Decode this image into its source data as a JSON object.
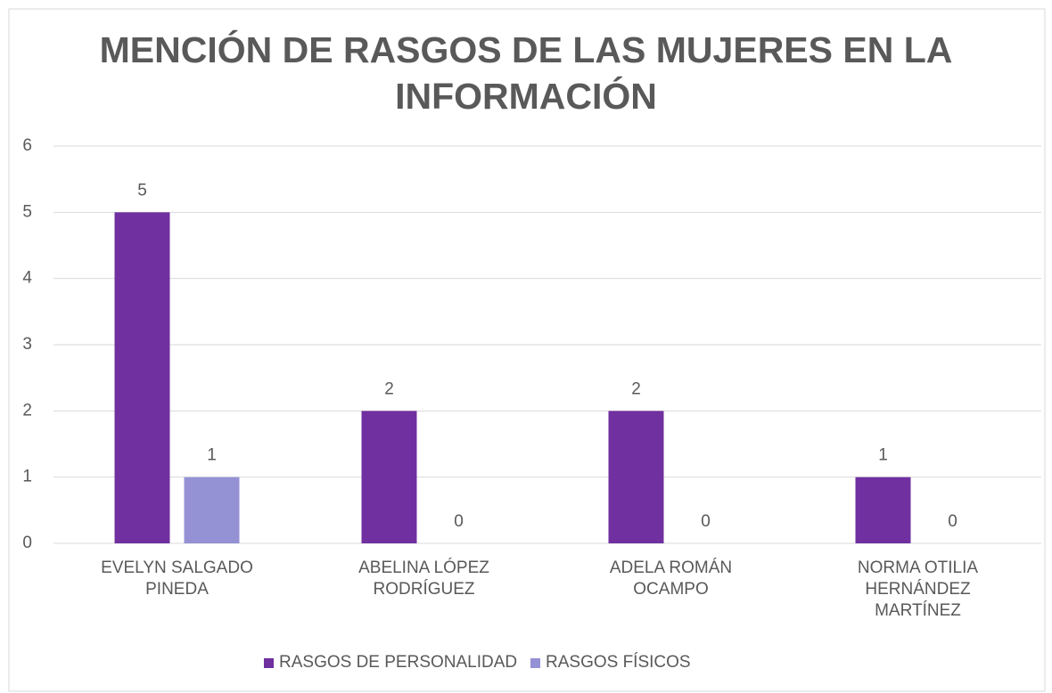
{
  "chart_data": {
    "type": "bar",
    "title": "MENCIÓN DE RASGOS DE LAS MUJERES EN LA INFORMACIÓN",
    "categories": [
      "EVELYN SALGADO PINEDA",
      "ABELINA LÓPEZ RODRÍGUEZ",
      "ADELA ROMÁN OCAMPO",
      "NORMA OTILIA HERNÁNDEZ MARTÍNEZ"
    ],
    "series": [
      {
        "name": "RASGOS DE PERSONALIDAD",
        "color": "#7030a0",
        "values": [
          5,
          2,
          2,
          1
        ]
      },
      {
        "name": "RASGOS FÍSICOS",
        "color": "#9591d5",
        "values": [
          1,
          0,
          0,
          0
        ]
      }
    ],
    "ylim": [
      0,
      6
    ],
    "yticks": [
      0,
      1,
      2,
      3,
      4,
      5,
      6
    ],
    "grid": true,
    "legend": "bottom"
  }
}
